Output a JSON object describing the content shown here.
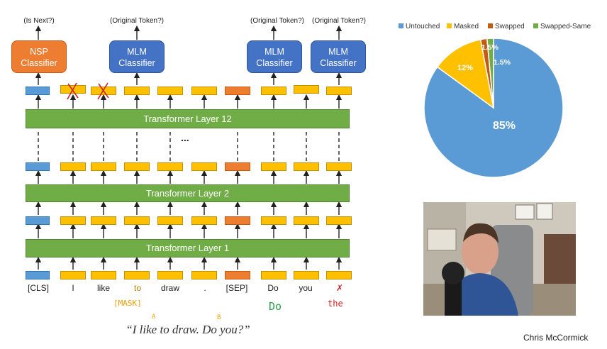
{
  "diagram": {
    "headers": {
      "nsp": "(Is Next?)",
      "mlm_1": "(Original Token?)",
      "mlm_2": "(Original Token?)",
      "mlm_3": "(Original Token?)"
    },
    "classifiers": {
      "nsp_line1": "NSP",
      "nsp_line2": "Classifier",
      "mlm_line1": "MLM",
      "mlm_line2": "Classifier"
    },
    "layers": {
      "top": "Transformer Layer 12",
      "middle": "Transformer Layer 2",
      "bottom": "Transformer Layer 1"
    },
    "ellipsis": "...",
    "tokens": [
      "[CLS]",
      "I",
      "like",
      "to",
      "draw",
      ".",
      "[SEP]",
      "Do",
      "you",
      "the"
    ],
    "annotations": {
      "mask": "[MASK]",
      "label_a": "A",
      "label_b": "B",
      "replacement_do": "Do",
      "replacement_the": "the"
    },
    "quote": "“I like to draw. Do you?”"
  },
  "chart_data": {
    "type": "pie",
    "categories": [
      "Untouched",
      "Masked",
      "Swapped",
      "Swapped-Same"
    ],
    "values": [
      85,
      12,
      1.5,
      1.5
    ],
    "data_labels": [
      "85%",
      "12%",
      "1.5%",
      "1.5%"
    ],
    "colors": [
      "#5b9bd5",
      "#ffc000",
      "#c55a11",
      "#70ad47"
    ],
    "legend_position": "top"
  },
  "presenter": {
    "name": "Chris McCormick"
  },
  "colors": {
    "layer_green": "#70ad47",
    "nsp_orange": "#ed7d31",
    "mlm_blue": "#4472c4",
    "token_yellow": "#ffc000",
    "cls_blue": "#5b9bd5",
    "sep_orange": "#ed7d31",
    "annotation_orange": "#f0a000",
    "annotation_green": "#2e9d47",
    "annotation_red": "#d12020"
  }
}
